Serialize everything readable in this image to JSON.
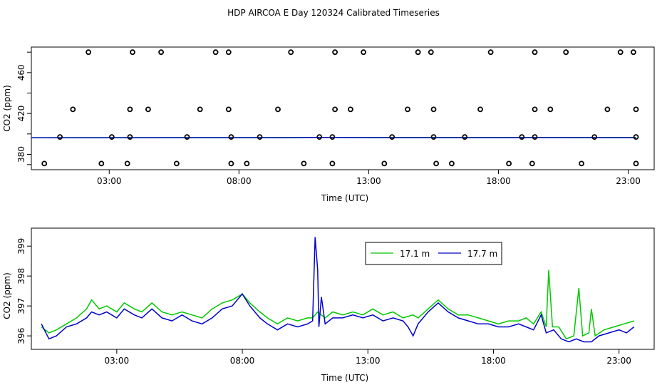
{
  "title": "HDP AIRCOA E  Day 120324  Calibrated Timeseries",
  "colors": {
    "series1": "#00c800",
    "series2": "#0000cc",
    "axis": "#000000"
  },
  "chart_data": [
    {
      "type": "scatter",
      "xlabel": "Time (UTC)",
      "ylabel": "CO2 (ppm)",
      "x_ticks": [
        "03:00",
        "08:00",
        "13:00",
        "18:00",
        "23:00"
      ],
      "y_ticks": [
        "380",
        "420",
        "460"
      ],
      "xlim": [
        0,
        24
      ],
      "ylim": [
        365,
        485
      ],
      "x_tick_values": [
        3,
        8,
        13,
        18,
        23
      ],
      "y_tick_values": [
        380,
        420,
        460
      ],
      "marker": "open-circle",
      "points": [
        [
          2.2,
          480
        ],
        [
          3.9,
          480
        ],
        [
          5.0,
          480
        ],
        [
          7.1,
          480
        ],
        [
          7.6,
          480
        ],
        [
          10.0,
          480
        ],
        [
          11.7,
          480
        ],
        [
          12.8,
          480
        ],
        [
          14.9,
          480
        ],
        [
          15.4,
          480
        ],
        [
          17.7,
          480
        ],
        [
          19.4,
          480
        ],
        [
          20.6,
          480
        ],
        [
          22.7,
          480
        ],
        [
          23.2,
          480
        ],
        [
          1.6,
          424
        ],
        [
          3.8,
          424
        ],
        [
          4.5,
          424
        ],
        [
          6.5,
          424
        ],
        [
          7.6,
          424
        ],
        [
          9.5,
          424
        ],
        [
          11.7,
          424
        ],
        [
          12.3,
          424
        ],
        [
          14.5,
          424
        ],
        [
          15.5,
          424
        ],
        [
          17.3,
          424
        ],
        [
          19.4,
          424
        ],
        [
          20.0,
          424
        ],
        [
          22.2,
          424
        ],
        [
          23.3,
          424
        ],
        [
          1.1,
          397
        ],
        [
          3.1,
          397
        ],
        [
          3.8,
          397
        ],
        [
          6.0,
          397
        ],
        [
          7.7,
          397
        ],
        [
          8.8,
          397
        ],
        [
          11.1,
          397
        ],
        [
          11.6,
          397
        ],
        [
          13.9,
          397
        ],
        [
          15.5,
          397
        ],
        [
          16.7,
          397
        ],
        [
          18.9,
          397
        ],
        [
          19.4,
          397
        ],
        [
          21.7,
          397
        ],
        [
          23.3,
          397
        ],
        [
          0.5,
          371
        ],
        [
          2.7,
          371
        ],
        [
          3.7,
          371
        ],
        [
          5.6,
          371
        ],
        [
          7.7,
          371
        ],
        [
          8.3,
          371
        ],
        [
          10.5,
          371
        ],
        [
          11.6,
          371
        ],
        [
          13.6,
          371
        ],
        [
          15.6,
          371
        ],
        [
          16.2,
          371
        ],
        [
          18.4,
          371
        ],
        [
          19.3,
          371
        ],
        [
          21.2,
          371
        ],
        [
          23.3,
          371
        ]
      ],
      "series": [
        {
          "name": "",
          "color": "#00c800",
          "points": [
            [
              0,
              396.3
            ],
            [
              6,
              396.4
            ],
            [
              10,
              396.5
            ],
            [
              11,
              396.6
            ],
            [
              14,
              396.5
            ],
            [
              18,
              396.5
            ],
            [
              20,
              396.6
            ],
            [
              23.3,
              396.5
            ]
          ]
        },
        {
          "name": "",
          "color": "#0000cc",
          "points": [
            [
              0,
              396.2
            ],
            [
              6,
              396.3
            ],
            [
              10,
              396.3
            ],
            [
              11,
              396.5
            ],
            [
              14,
              396.3
            ],
            [
              18,
              396.3
            ],
            [
              20,
              396.4
            ],
            [
              23.3,
              396.3
            ]
          ]
        }
      ]
    },
    {
      "type": "line",
      "xlabel": "Time (UTC)",
      "ylabel": "CO2 (ppm)",
      "x_ticks": [
        "03:00",
        "08:00",
        "13:00",
        "18:00",
        "23:00"
      ],
      "y_ticks": [
        "396",
        "397",
        "398",
        "399"
      ],
      "xlim": [
        -0.4,
        24.4
      ],
      "ylim": [
        395.55,
        399.6
      ],
      "x_tick_values": [
        3,
        8,
        13,
        18,
        23
      ],
      "y_tick_values": [
        396,
        397,
        398,
        399
      ],
      "legend": {
        "position": "top-right"
      },
      "series": [
        {
          "name": "17.1 m",
          "color": "#00c800",
          "points": [
            [
              0.0,
              396.3
            ],
            [
              0.3,
              396.1
            ],
            [
              0.6,
              396.2
            ],
            [
              1.0,
              396.4
            ],
            [
              1.4,
              396.6
            ],
            [
              1.8,
              396.9
            ],
            [
              2.0,
              397.2
            ],
            [
              2.3,
              396.9
            ],
            [
              2.6,
              397.0
            ],
            [
              3.0,
              396.8
            ],
            [
              3.3,
              397.1
            ],
            [
              3.7,
              396.9
            ],
            [
              4.0,
              396.8
            ],
            [
              4.4,
              397.1
            ],
            [
              4.8,
              396.8
            ],
            [
              5.2,
              396.7
            ],
            [
              5.6,
              396.8
            ],
            [
              6.0,
              396.7
            ],
            [
              6.4,
              396.6
            ],
            [
              6.8,
              396.9
            ],
            [
              7.2,
              397.1
            ],
            [
              7.6,
              397.2
            ],
            [
              8.0,
              397.4
            ],
            [
              8.3,
              397.1
            ],
            [
              8.7,
              396.8
            ],
            [
              9.0,
              396.6
            ],
            [
              9.4,
              396.4
            ],
            [
              9.8,
              396.6
            ],
            [
              10.2,
              396.5
            ],
            [
              10.6,
              396.6
            ],
            [
              10.8,
              396.6
            ],
            [
              11.0,
              396.8
            ],
            [
              11.3,
              396.6
            ],
            [
              11.6,
              396.8
            ],
            [
              12.0,
              396.7
            ],
            [
              12.4,
              396.8
            ],
            [
              12.8,
              396.7
            ],
            [
              13.2,
              396.9
            ],
            [
              13.6,
              396.7
            ],
            [
              14.0,
              396.8
            ],
            [
              14.4,
              396.6
            ],
            [
              14.8,
              396.7
            ],
            [
              15.0,
              396.6
            ],
            [
              15.4,
              396.9
            ],
            [
              15.8,
              397.2
            ],
            [
              16.2,
              396.9
            ],
            [
              16.6,
              396.7
            ],
            [
              17.0,
              396.7
            ],
            [
              17.4,
              396.6
            ],
            [
              17.8,
              396.5
            ],
            [
              18.2,
              396.4
            ],
            [
              18.6,
              396.5
            ],
            [
              19.0,
              396.5
            ],
            [
              19.3,
              396.6
            ],
            [
              19.6,
              396.4
            ],
            [
              19.9,
              396.8
            ],
            [
              20.1,
              396.3
            ],
            [
              20.2,
              398.2
            ],
            [
              20.35,
              396.3
            ],
            [
              20.6,
              396.3
            ],
            [
              20.9,
              395.9
            ],
            [
              21.2,
              396.0
            ],
            [
              21.4,
              397.6
            ],
            [
              21.55,
              396.0
            ],
            [
              21.8,
              396.1
            ],
            [
              21.9,
              396.9
            ],
            [
              22.05,
              396.0
            ],
            [
              22.4,
              396.2
            ],
            [
              22.8,
              396.3
            ],
            [
              23.2,
              396.4
            ],
            [
              23.6,
              396.5
            ]
          ]
        },
        {
          "name": "17.7 m",
          "color": "#0000cc",
          "points": [
            [
              0.0,
              396.4
            ],
            [
              0.3,
              395.9
            ],
            [
              0.6,
              396.0
            ],
            [
              1.0,
              396.3
            ],
            [
              1.4,
              396.4
            ],
            [
              1.8,
              396.6
            ],
            [
              2.0,
              396.8
            ],
            [
              2.3,
              396.7
            ],
            [
              2.6,
              396.8
            ],
            [
              3.0,
              396.6
            ],
            [
              3.3,
              396.9
            ],
            [
              3.7,
              396.7
            ],
            [
              4.0,
              396.6
            ],
            [
              4.4,
              396.9
            ],
            [
              4.8,
              396.6
            ],
            [
              5.2,
              396.5
            ],
            [
              5.6,
              396.7
            ],
            [
              6.0,
              396.5
            ],
            [
              6.4,
              396.4
            ],
            [
              6.8,
              396.6
            ],
            [
              7.2,
              396.9
            ],
            [
              7.6,
              397.0
            ],
            [
              8.0,
              397.4
            ],
            [
              8.3,
              397.0
            ],
            [
              8.7,
              396.6
            ],
            [
              9.0,
              396.4
            ],
            [
              9.4,
              396.2
            ],
            [
              9.8,
              396.4
            ],
            [
              10.2,
              396.3
            ],
            [
              10.6,
              396.4
            ],
            [
              10.8,
              396.5
            ],
            [
              10.9,
              399.3
            ],
            [
              11.0,
              398.2
            ],
            [
              11.05,
              396.3
            ],
            [
              11.15,
              397.3
            ],
            [
              11.3,
              396.4
            ],
            [
              11.6,
              396.6
            ],
            [
              12.0,
              396.6
            ],
            [
              12.4,
              396.7
            ],
            [
              12.8,
              396.6
            ],
            [
              13.2,
              396.7
            ],
            [
              13.6,
              396.5
            ],
            [
              14.0,
              396.6
            ],
            [
              14.4,
              396.5
            ],
            [
              14.6,
              396.3
            ],
            [
              14.8,
              396.0
            ],
            [
              15.0,
              396.4
            ],
            [
              15.4,
              396.8
            ],
            [
              15.8,
              397.1
            ],
            [
              16.2,
              396.8
            ],
            [
              16.6,
              396.6
            ],
            [
              17.0,
              396.5
            ],
            [
              17.4,
              396.4
            ],
            [
              17.8,
              396.4
            ],
            [
              18.2,
              396.3
            ],
            [
              18.6,
              396.3
            ],
            [
              19.0,
              396.4
            ],
            [
              19.3,
              396.3
            ],
            [
              19.6,
              396.2
            ],
            [
              19.9,
              396.7
            ],
            [
              20.1,
              396.1
            ],
            [
              20.4,
              396.2
            ],
            [
              20.7,
              395.9
            ],
            [
              21.0,
              395.8
            ],
            [
              21.3,
              395.9
            ],
            [
              21.6,
              395.8
            ],
            [
              21.9,
              395.8
            ],
            [
              22.2,
              396.0
            ],
            [
              22.6,
              396.1
            ],
            [
              23.0,
              396.2
            ],
            [
              23.3,
              396.1
            ],
            [
              23.6,
              396.3
            ]
          ]
        }
      ]
    }
  ]
}
